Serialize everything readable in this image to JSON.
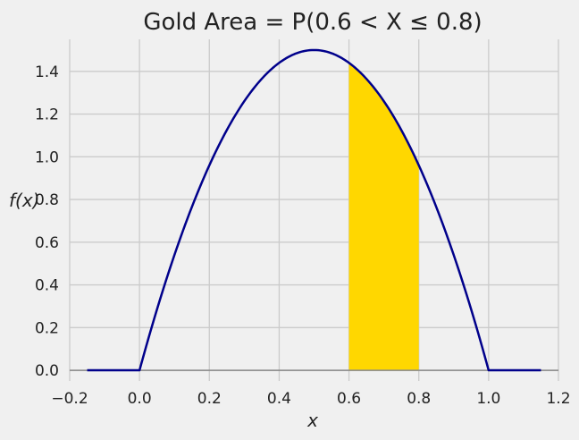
{
  "chart_data": {
    "type": "area",
    "title": "Gold Area = P(0.6 < X ≤ 0.8)",
    "xlabel": "x",
    "ylabel": "f(x)",
    "xlim": [
      -0.2,
      1.2
    ],
    "ylim": [
      -0.05,
      1.55
    ],
    "x_ticks": [
      -0.2,
      0.0,
      0.2,
      0.4,
      0.6,
      0.8,
      1.0,
      1.2
    ],
    "x_tick_labels": [
      "−0.2",
      "0.0",
      "0.2",
      "0.4",
      "0.6",
      "0.8",
      "1.0",
      "1.2"
    ],
    "y_ticks": [
      0.0,
      0.2,
      0.4,
      0.6,
      0.8,
      1.0,
      1.2,
      1.4
    ],
    "y_tick_labels": [
      "0.0",
      "0.2",
      "0.4",
      "0.6",
      "0.8",
      "1.0",
      "1.2",
      "1.4"
    ],
    "grid": true,
    "series": [
      {
        "type": "line",
        "color": "#00008b",
        "x": [
          -0.15,
          0.0,
          0.05,
          0.1,
          0.15,
          0.2,
          0.25,
          0.3,
          0.35,
          0.4,
          0.45,
          0.5,
          0.55,
          0.6,
          0.65,
          0.7,
          0.75,
          0.8,
          0.85,
          0.9,
          0.95,
          1.0,
          1.15
        ],
        "y": [
          0.0,
          0.0,
          0.285,
          0.54,
          0.765,
          0.96,
          1.125,
          1.26,
          1.365,
          1.44,
          1.485,
          1.5,
          1.485,
          1.44,
          1.365,
          1.26,
          1.125,
          0.96,
          0.765,
          0.54,
          0.285,
          0.0,
          0.0
        ]
      }
    ],
    "shaded_region": {
      "color": "#ffd700",
      "x_from": 0.6,
      "x_to": 0.8
    },
    "baseline": {
      "y": 0.0,
      "color": "#888888"
    }
  }
}
